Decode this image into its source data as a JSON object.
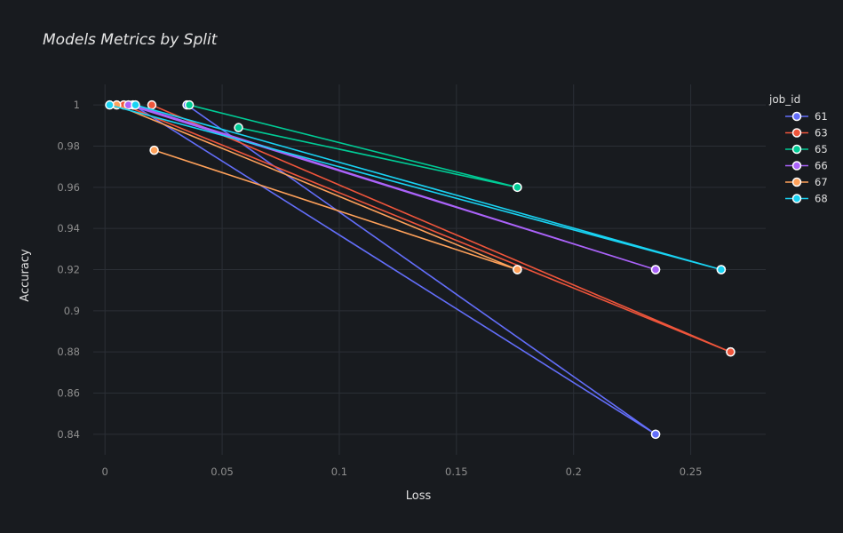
{
  "chart_data": {
    "type": "line",
    "title": "Models Metrics by Split",
    "xlabel": "Loss",
    "ylabel": "Accuracy",
    "xlim": [
      -0.005,
      0.282
    ],
    "ylim": [
      0.83,
      1.01
    ],
    "xticks": [
      0,
      0.05,
      0.1,
      0.15,
      0.2,
      0.25
    ],
    "xtick_labels": [
      "0",
      "0.05",
      "0.1",
      "0.15",
      "0.2",
      "0.25"
    ],
    "yticks": [
      0.84,
      0.86,
      0.88,
      0.9,
      0.92,
      0.94,
      0.96,
      0.98,
      1
    ],
    "ytick_labels": [
      "0.84",
      "0.86",
      "0.88",
      "0.9",
      "0.92",
      "0.94",
      "0.96",
      "0.98",
      "1"
    ],
    "grid": true,
    "legend_title": "job_id",
    "legend_position": "top-right",
    "series": [
      {
        "name": "61",
        "color": "#636efa",
        "x": [
          0.035,
          0.235,
          0.012,
          0.235
        ],
        "y": [
          1.0,
          0.84,
          1.0,
          0.84
        ]
      },
      {
        "name": "63",
        "color": "#ef553b",
        "x": [
          0.02,
          0.267,
          0.008,
          0.267
        ],
        "y": [
          1.0,
          0.88,
          1.0,
          0.88
        ]
      },
      {
        "name": "65",
        "color": "#00cc96",
        "x": [
          0.036,
          0.176,
          0.057,
          0.176
        ],
        "y": [
          1.0,
          0.96,
          0.989,
          0.96
        ]
      },
      {
        "name": "66",
        "color": "#ab63fa",
        "x": [
          0.012,
          0.235,
          0.01,
          0.235
        ],
        "y": [
          1.0,
          0.92,
          1.0,
          0.92
        ]
      },
      {
        "name": "67",
        "color": "#ffa15a",
        "x": [
          0.005,
          0.176,
          0.021,
          0.176
        ],
        "y": [
          1.0,
          0.92,
          0.978,
          0.92
        ]
      },
      {
        "name": "68",
        "color": "#19d3f3",
        "x": [
          0.002,
          0.263,
          0.013,
          0.263
        ],
        "y": [
          1.0,
          0.92,
          1.0,
          0.92
        ]
      }
    ]
  },
  "colors": {
    "background": "#181b1f",
    "grid": "#2b2f36",
    "tick_text": "#8e8e8e",
    "marker_outline": "#ffffff"
  }
}
